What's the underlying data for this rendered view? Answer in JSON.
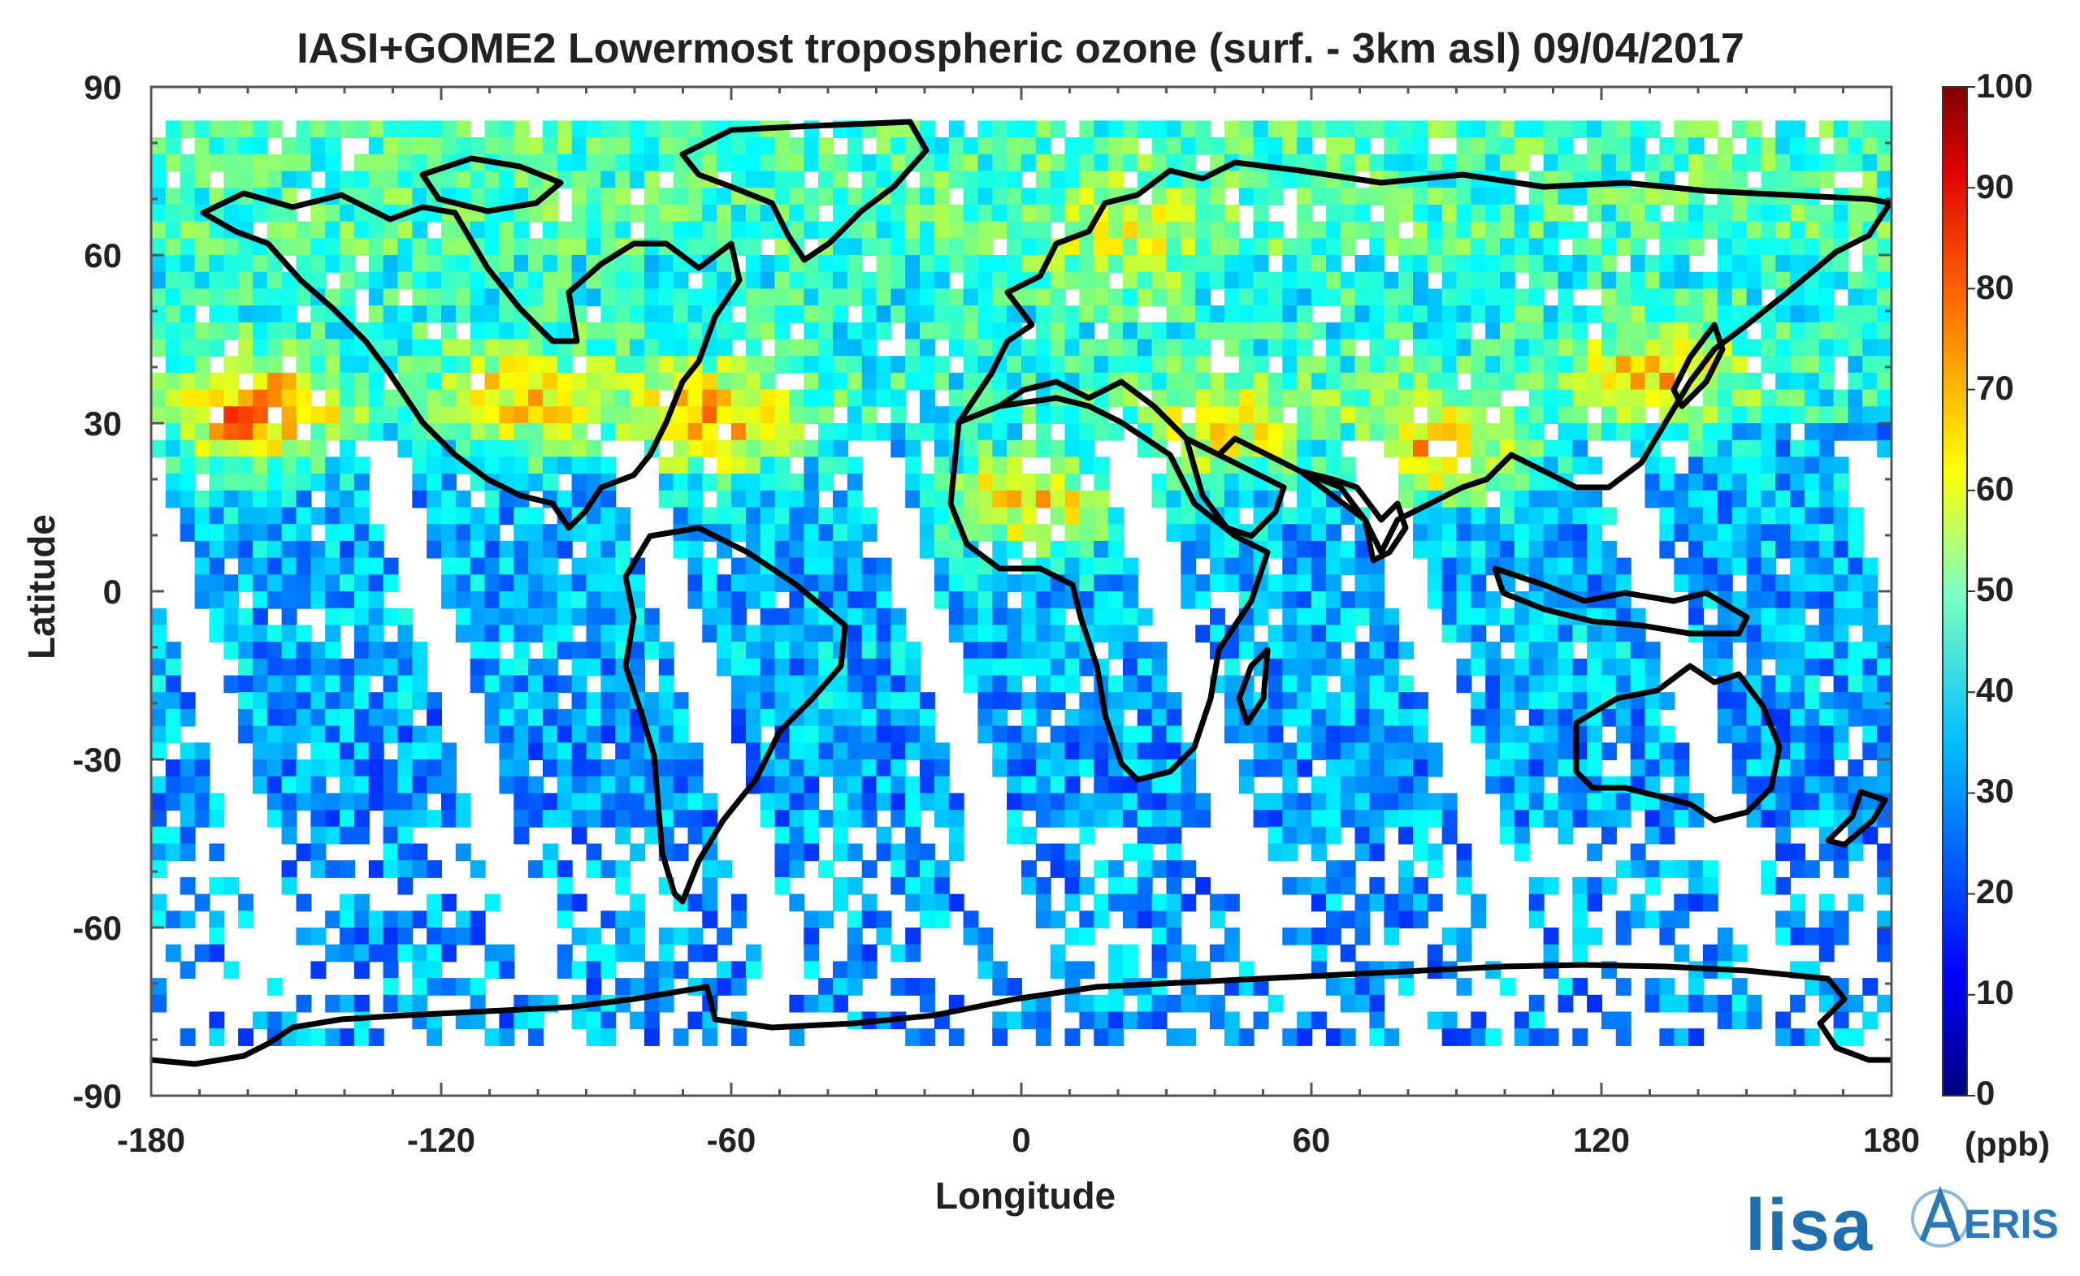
{
  "title": "IASI+GOME2 Lowermost tropospheric ozone (surf. - 3km asl) 09/04/2017",
  "x_axis": {
    "label": "Longitude",
    "ticks": [
      "-180",
      "-120",
      "-60",
      "0",
      "60",
      "120",
      "180"
    ],
    "range": [
      -180,
      180
    ]
  },
  "y_axis": {
    "label": "Latitude",
    "ticks": [
      "90",
      "60",
      "30",
      "0",
      "-30",
      "-60",
      "-90"
    ],
    "range": [
      -90,
      90
    ]
  },
  "colorbar": {
    "ticks": [
      "100",
      "90",
      "80",
      "70",
      "60",
      "50",
      "40",
      "30",
      "20",
      "10",
      "0"
    ],
    "unit": "(ppb)",
    "range": [
      0,
      100
    ],
    "colormap": "jet",
    "colors": [
      "#00007f",
      "#0000ff",
      "#007fff",
      "#00ffff",
      "#7fff7f",
      "#ffff00",
      "#ff7f00",
      "#ff0000",
      "#7f0000"
    ]
  },
  "logos": {
    "lisa": "lisa",
    "aeris": "ERIS"
  },
  "colors": {
    "coastline": "#000000",
    "background": "#ffffff",
    "frame": "#555555"
  }
}
